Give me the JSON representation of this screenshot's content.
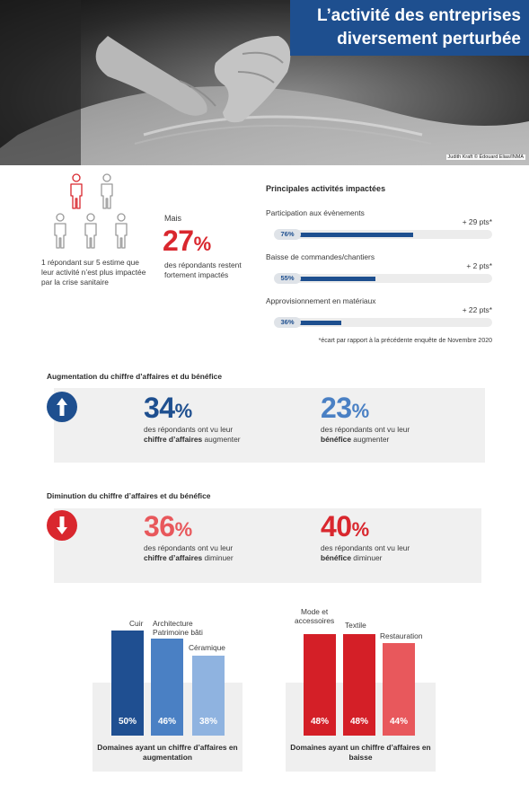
{
  "header": {
    "title_line1": "L’activité des entreprises",
    "title_line2": "diversement perturbée",
    "photo_credit": "Judith Kraft © Édouard Elias/INMA",
    "title_bg": "#1e4f8f"
  },
  "respondents": {
    "icons": [
      {
        "icon": "person-icon",
        "highlighted": true
      },
      {
        "icon": "person-icon",
        "highlighted": false
      },
      {
        "icon": "person-icon",
        "highlighted": false
      },
      {
        "icon": "person-icon",
        "highlighted": false
      },
      {
        "icon": "person-icon",
        "highlighted": false
      }
    ],
    "text": "1 répondant sur 5 estime que leur activité n’est plus impactée par la crise sanitaire",
    "highlight_color": "#d9272e"
  },
  "impacted": {
    "lead": "Mais",
    "value": "27",
    "unit": "%",
    "text": "des répondants restent fortement impactés"
  },
  "activities": {
    "title": "Principales activités impactées",
    "items": [
      {
        "label": "Participation aux évènements",
        "value": 76,
        "value_label": "76%",
        "delta": "+ 29 pts*"
      },
      {
        "label": "Baisse de commandes/chantiers",
        "value": 55,
        "value_label": "55%",
        "delta": "+ 2 pts*"
      },
      {
        "label": "Approvisionnement en matériaux",
        "value": 36,
        "value_label": "36%",
        "delta": "+ 22 pts*"
      }
    ],
    "footnote": "*écart par rapport à la précédente enquête de Novembre 2020"
  },
  "increase": {
    "title": "Augmentation du chiffre d’affaires et du bénéfice",
    "arrow_icon": "arrow-up-icon",
    "arrow_color": "#1e4f8f",
    "stats": [
      {
        "value": "34",
        "unit": "%",
        "text_before": "des répondants ont vu leur",
        "bold": "chiffre d’affaires",
        "text_after": "augmenter",
        "color": "#1e4f8f"
      },
      {
        "value": "23",
        "unit": "%",
        "text_before": "des répondants ont vu leur",
        "bold": "bénéfice",
        "text_after": "augmenter",
        "color": "#4a80c4"
      }
    ]
  },
  "decrease": {
    "title": "Diminution du chiffre d’affaires et du bénéfice",
    "arrow_icon": "arrow-down-icon",
    "arrow_color": "#d9272e",
    "stats": [
      {
        "value": "36",
        "unit": "%",
        "text_before": "des répondants ont vu leur",
        "bold": "chiffre d’affaires",
        "text_after": "diminuer",
        "color": "#e8585c"
      },
      {
        "value": "40",
        "unit": "%",
        "text_before": "des répondants ont vu leur",
        "bold": "bénéfice",
        "text_after": "diminuer",
        "color": "#d9272e"
      }
    ]
  },
  "chart_data": [
    {
      "type": "bar",
      "categories": [
        "Cuir",
        "Architecture Patrimoine bâti",
        "Céramique"
      ],
      "values": [
        50,
        46,
        38
      ],
      "value_labels": [
        "50%",
        "46%",
        "38%"
      ],
      "colors": [
        "#1f4f91",
        "#4a80c4",
        "#8fb3e0"
      ],
      "caption": "Domaines ayant un chiffre d’affaires en augmentation"
    },
    {
      "type": "bar",
      "categories": [
        "Mode et accessoires",
        "Textile",
        "Restauration"
      ],
      "values": [
        48,
        48,
        44
      ],
      "value_labels": [
        "48%",
        "48%",
        "44%"
      ],
      "colors": [
        "#d41f27",
        "#d41f27",
        "#e8585c"
      ],
      "caption": "Domaines ayant un chiffre d’affaires en baisse"
    }
  ]
}
